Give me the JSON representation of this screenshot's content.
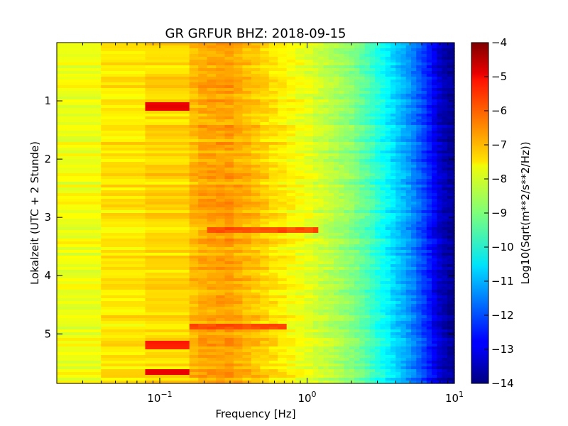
{
  "chart_data": {
    "type": "heatmap",
    "title": "GR GRFUR BHZ: 2018-09-15",
    "xlabel": "Frequency [Hz]",
    "ylabel": "Lokalzeit (UTC + 2 Stunde)",
    "x_scale": "log",
    "xlim": [
      0.02,
      10
    ],
    "ylim": [
      5.85,
      0
    ],
    "x_ticks": [
      {
        "base": "10",
        "exp": "−1",
        "value": 0.1
      },
      {
        "base": "10",
        "exp": "0",
        "value": 1
      },
      {
        "base": "10",
        "exp": "1",
        "value": 10
      }
    ],
    "y_ticks": [
      {
        "label": "1",
        "value": 1
      },
      {
        "label": "2",
        "value": 2
      },
      {
        "label": "3",
        "value": 3
      },
      {
        "label": "4",
        "value": 4
      },
      {
        "label": "5",
        "value": 5
      }
    ],
    "colorbar": {
      "label": "Log10(Sqrt(m**2/s**2/Hz))",
      "range": [
        -14,
        -4
      ],
      "colormap": "jet",
      "ticks": [
        {
          "label": "−4",
          "value": -4
        },
        {
          "label": "−5",
          "value": -5
        },
        {
          "label": "−6",
          "value": -6
        },
        {
          "label": "−7",
          "value": -7
        },
        {
          "label": "−8",
          "value": -8
        },
        {
          "label": "−9",
          "value": -9
        },
        {
          "label": "−10",
          "value": -10
        },
        {
          "label": "−11",
          "value": -11
        },
        {
          "label": "−12",
          "value": -12
        },
        {
          "label": "−13",
          "value": -13
        },
        {
          "label": "−14",
          "value": -14
        }
      ]
    },
    "spectrum_profile": {
      "frequency_hz": [
        0.02,
        0.04,
        0.06,
        0.08,
        0.12,
        0.15,
        0.2,
        0.3,
        0.45,
        0.6,
        1.0,
        1.5,
        2.0,
        2.5,
        3.5,
        5.0,
        6.5,
        8.0,
        10.0
      ],
      "log10_amplitude": [
        -8.0,
        -7.8,
        -7.5,
        -7.2,
        -7.4,
        -7.2,
        -6.9,
        -6.8,
        -7.2,
        -7.5,
        -8.0,
        -8.5,
        -8.9,
        -9.4,
        -10.3,
        -11.3,
        -12.3,
        -13.3,
        -13.9
      ]
    },
    "features": [
      {
        "time_hours": 1.1,
        "frequency_range_hz": [
          0.06,
          0.12
        ],
        "log10_amplitude": -5.0
      },
      {
        "time_hours": 5.65,
        "frequency_range_hz": [
          0.06,
          0.12
        ],
        "log10_amplitude": -5.0
      },
      {
        "time_hours": 5.2,
        "frequency_range_hz": [
          0.06,
          0.12
        ],
        "log10_amplitude": -5.5
      },
      {
        "time_hours": 3.22,
        "frequency_range_hz": [
          0.2,
          1.2
        ],
        "log10_amplitude": -6.0
      },
      {
        "time_hours": 4.87,
        "frequency_range_hz": [
          0.12,
          0.7
        ],
        "log10_amplitude": -6.0
      }
    ]
  }
}
